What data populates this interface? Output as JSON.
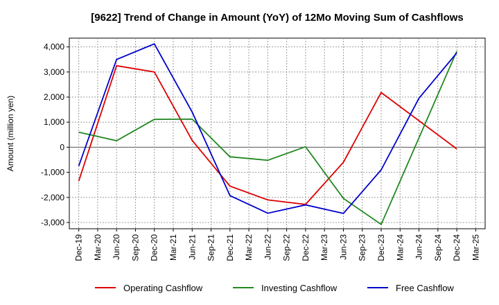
{
  "chart_data": {
    "type": "line",
    "title": "[9622]  Trend of Change in Amount (YoY) of 12Mo Moving Sum of Cashflows",
    "xlabel": "",
    "ylabel": "Amount (million yen)",
    "ylim": [
      -3250,
      4350
    ],
    "yticks": [
      4000,
      3000,
      2000,
      1000,
      0,
      -1000,
      -2000,
      -3000
    ],
    "ytick_labels": [
      "4,000",
      "3,000",
      "2,000",
      "1,000",
      "0",
      "-1,000",
      "-2,000",
      "-3,000"
    ],
    "categories": [
      "Dec-19",
      "Mar-20",
      "Jun-20",
      "Sep-20",
      "Dec-20",
      "Mar-21",
      "Jun-21",
      "Sep-21",
      "Dec-21",
      "Mar-22",
      "Jun-22",
      "Sep-22",
      "Dec-22",
      "Mar-23",
      "Jun-23",
      "Sep-23",
      "Dec-23",
      "Mar-24",
      "Jun-24",
      "Sep-24",
      "Dec-24",
      "Mar-25"
    ],
    "grid": true,
    "legend_position": "bottom",
    "series": [
      {
        "name": "Operating Cashflow",
        "color": "#dd0000",
        "values": [
          -1350,
          null,
          3250,
          null,
          3000,
          null,
          270,
          null,
          -1550,
          null,
          -2100,
          null,
          -2280,
          null,
          -600,
          null,
          2180,
          null,
          null,
          null,
          -70,
          null
        ]
      },
      {
        "name": "Investing Cashflow",
        "color": "#228822",
        "values": [
          600,
          null,
          260,
          null,
          1110,
          null,
          1120,
          null,
          -380,
          null,
          -520,
          null,
          20,
          null,
          -2040,
          null,
          -3080,
          null,
          null,
          null,
          3830,
          null
        ]
      },
      {
        "name": "Free Cashflow",
        "color": "#0000cc",
        "values": [
          -750,
          null,
          3500,
          null,
          4120,
          null,
          1400,
          null,
          -1930,
          null,
          -2630,
          null,
          -2300,
          null,
          -2640,
          null,
          -900,
          null,
          1950,
          null,
          3760,
          null
        ]
      }
    ]
  }
}
